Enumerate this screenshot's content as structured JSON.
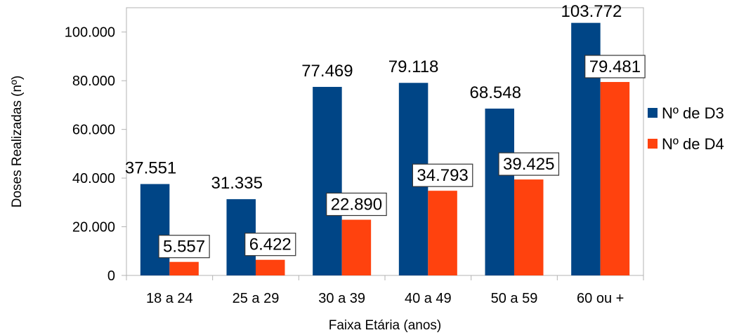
{
  "chart_data": {
    "type": "bar",
    "categories": [
      "18 a 24",
      "25 a 29",
      "30 a 39",
      "40 a 49",
      "50 a 59",
      "60 ou +"
    ],
    "series": [
      {
        "name": "Nº de D3",
        "color": "#004586",
        "values": [
          37551,
          31335,
          77469,
          79118,
          68548,
          103772
        ],
        "labels": [
          "37.551",
          "31.335",
          "77.469",
          "79.118",
          "68.548",
          "103.772"
        ],
        "label_boxed": false
      },
      {
        "name": "Nº de D4",
        "color": "#ff420e",
        "values": [
          5557,
          6422,
          22890,
          34793,
          39425,
          79481
        ],
        "labels": [
          "5.557",
          "6.422",
          "22.890",
          "34.793",
          "39.425",
          "79.481"
        ],
        "label_boxed": true
      }
    ],
    "xlabel": "Faixa Etária (anos)",
    "ylabel": "Doses Realizadas (nº)",
    "ylim": [
      0,
      100000
    ],
    "yticks": [
      0,
      20000,
      40000,
      60000,
      80000,
      100000
    ],
    "ytick_labels": [
      "0",
      "20.000",
      "40.000",
      "60.000",
      "80.000",
      "100.000"
    ],
    "grid": false,
    "legend": "right"
  }
}
